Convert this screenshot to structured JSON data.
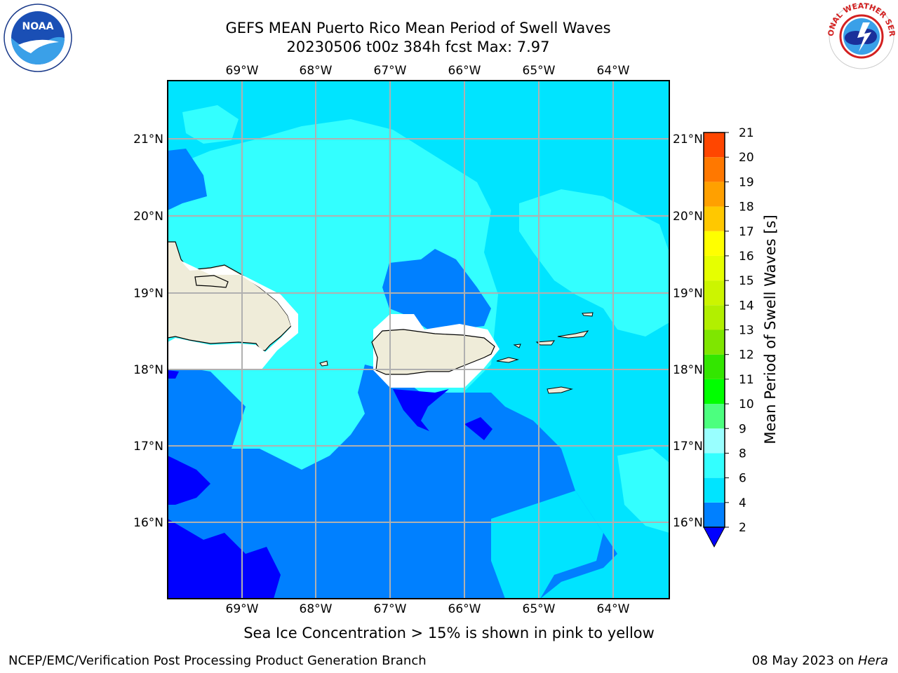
{
  "title_line1": "GEFS MEAN Puerto Rico Mean Period of Swell Waves",
  "title_line2": "20230506 t00z 384h fcst   Max: 7.97",
  "logos": {
    "left": "noaa-logo",
    "right": "national-weather-service-logo",
    "noaa_text": "NOAA",
    "nws_text": "NATIONAL WEATHER SERVICE"
  },
  "map": {
    "lon_labels": [
      "69°W",
      "68°W",
      "67°W",
      "66°W",
      "65°W",
      "64°W"
    ],
    "lat_labels": [
      "21°N",
      "20°N",
      "19°N",
      "18°N",
      "17°N",
      "16°N"
    ],
    "land_color": "#efecd9",
    "grid_color": "#b0b0b0"
  },
  "colorbar": {
    "title": "Mean Period of Swell Waves [s]",
    "levels": [
      "2",
      "4",
      "6",
      "8",
      "9",
      "10",
      "11",
      "12",
      "13",
      "14",
      "15",
      "16",
      "17",
      "18",
      "19",
      "20",
      "21"
    ],
    "colors": [
      "#0080ff",
      "#00e4ff",
      "#33ffff",
      "#99ffff",
      "#4cff7f",
      "#00ff00",
      "#33e600",
      "#7fe600",
      "#b2ef00",
      "#ccf500",
      "#e6ff00",
      "#ffff00",
      "#ffc800",
      "#ffa000",
      "#ff7800",
      "#ff4600",
      "#ff0000"
    ],
    "under_color": "#0000ff"
  },
  "caption": "Sea Ice Concentration > 15% is shown in pink to yellow",
  "footer_left": "NCEP/EMC/Verification Post Processing Product Generation Branch",
  "footer_right_prefix": "08 May 2023 on ",
  "footer_right_host": "Hera"
}
